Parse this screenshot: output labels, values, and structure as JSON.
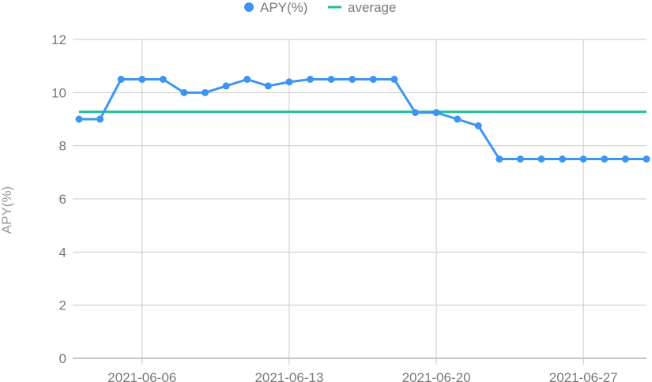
{
  "chart_data": {
    "type": "line",
    "ylabel": "APY(%)",
    "ylim": [
      0,
      12
    ],
    "yticks": [
      0,
      2,
      4,
      6,
      8,
      10,
      12
    ],
    "xlim": [
      "2021-06-03",
      "2021-06-30"
    ],
    "xticks": [
      "2021-06-06",
      "2021-06-13",
      "2021-06-20",
      "2021-06-27"
    ],
    "grid": true,
    "legend": "top-center",
    "colors": {
      "apy": "#3d95f2",
      "average": "#1fc196",
      "grid": "#c8c8c8",
      "baseline": "#888888"
    },
    "series": [
      {
        "name": "APY(%)",
        "x": [
          "2021-06-03",
          "2021-06-04",
          "2021-06-05",
          "2021-06-06",
          "2021-06-07",
          "2021-06-08",
          "2021-06-09",
          "2021-06-10",
          "2021-06-11",
          "2021-06-12",
          "2021-06-13",
          "2021-06-14",
          "2021-06-15",
          "2021-06-16",
          "2021-06-17",
          "2021-06-18",
          "2021-06-19",
          "2021-06-20",
          "2021-06-21",
          "2021-06-22",
          "2021-06-23",
          "2021-06-24",
          "2021-06-25",
          "2021-06-26",
          "2021-06-27",
          "2021-06-28",
          "2021-06-29",
          "2021-06-30"
        ],
        "values": [
          9.0,
          9.0,
          10.5,
          10.5,
          10.5,
          10.0,
          10.0,
          10.25,
          10.5,
          10.25,
          10.4,
          10.5,
          10.5,
          10.5,
          10.5,
          10.5,
          9.25,
          9.25,
          9.0,
          8.75,
          7.5,
          7.5,
          7.5,
          7.5,
          7.5,
          7.5,
          7.5,
          7.5
        ]
      },
      {
        "name": "average",
        "value": 9.28
      }
    ]
  }
}
